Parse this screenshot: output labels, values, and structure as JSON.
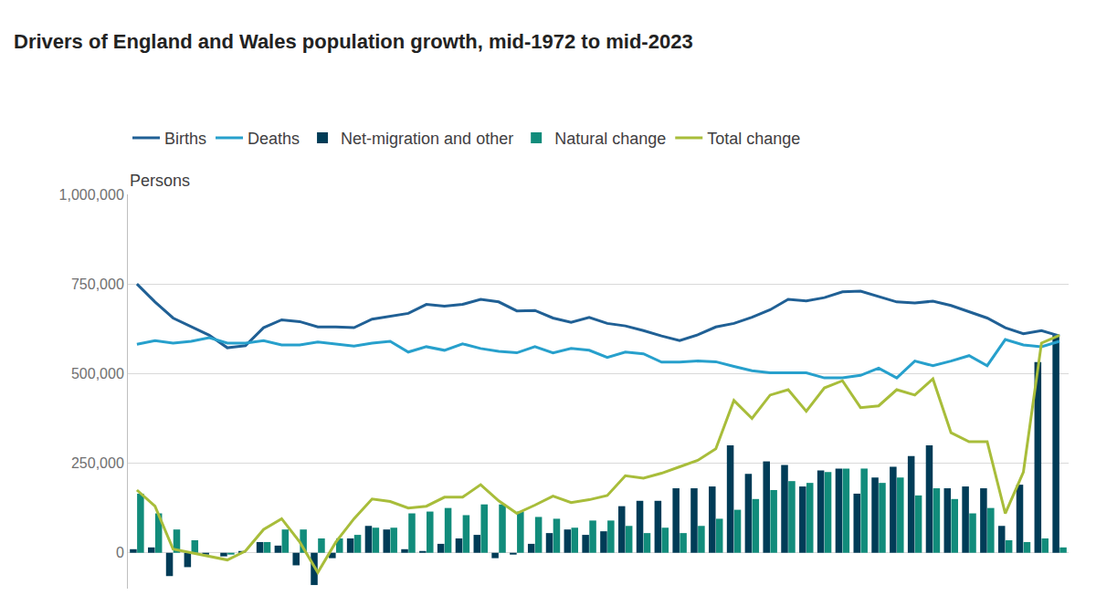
{
  "chart_data": {
    "type": "bar",
    "title": "Drivers of England and Wales population growth, mid-1972 to mid-2023",
    "ylabel": "Persons",
    "categories": [
      null,
      null,
      null,
      null,
      null,
      null,
      null,
      null,
      null,
      null,
      null,
      null,
      null,
      null,
      null,
      null,
      null,
      null,
      null,
      null,
      null,
      null,
      null,
      null,
      null,
      null,
      null,
      null,
      null,
      null,
      null,
      null,
      null,
      null,
      null,
      null,
      null,
      null,
      null,
      null,
      null,
      null,
      null,
      null,
      null,
      null,
      null,
      null,
      null,
      null,
      null,
      null
    ],
    "series": [
      {
        "name": "Births",
        "type": "line",
        "color": "#206095",
        "values": [
          750000,
          700000,
          655000,
          632000,
          607000,
          572000,
          578000,
          628000,
          650000,
          645000,
          630000,
          630000,
          628000,
          652000,
          660000,
          668000,
          693000,
          688000,
          693000,
          707000,
          700000,
          675000,
          676000,
          655000,
          643000,
          657000,
          640000,
          633000,
          620000,
          605000,
          592000,
          608000,
          630000,
          640000,
          657000,
          678000,
          707000,
          703000,
          712000,
          728000,
          730000,
          715000,
          700000,
          697000,
          702000,
          690000,
          672000,
          655000,
          628000,
          611000,
          620000,
          605000
        ]
      },
      {
        "name": "Deaths",
        "type": "line",
        "color": "#27a0cc",
        "values": [
          582000,
          592000,
          585000,
          590000,
          600000,
          585000,
          585000,
          592000,
          580000,
          580000,
          588000,
          582000,
          577000,
          585000,
          590000,
          560000,
          575000,
          565000,
          583000,
          570000,
          562000,
          558000,
          575000,
          558000,
          570000,
          565000,
          545000,
          560000,
          555000,
          532000,
          532000,
          535000,
          533000,
          520000,
          508000,
          502000,
          502000,
          502000,
          488000,
          488000,
          495000,
          515000,
          488000,
          535000,
          522000,
          535000,
          550000,
          522000,
          595000,
          580000,
          575000,
          590000
        ]
      },
      {
        "name": "Net-migration and other",
        "type": "bar",
        "color": "#003c57",
        "values": [
          10000,
          15000,
          -65000,
          -40000,
          -5000,
          -10000,
          5000,
          30000,
          20000,
          -35000,
          -90000,
          -15000,
          40000,
          75000,
          65000,
          10000,
          5000,
          25000,
          40000,
          50000,
          -15000,
          -5000,
          25000,
          55000,
          65000,
          50000,
          60000,
          130000,
          145000,
          145000,
          180000,
          180000,
          185000,
          300000,
          220000,
          255000,
          245000,
          185000,
          230000,
          235000,
          165000,
          210000,
          240000,
          270000,
          300000,
          180000,
          185000,
          180000,
          75000,
          190000,
          532000,
          607000
        ]
      },
      {
        "name": "Natural change",
        "type": "bar",
        "color": "#118c7b",
        "values": [
          165000,
          110000,
          65000,
          35000,
          0,
          -5000,
          0,
          30000,
          65000,
          65000,
          40000,
          40000,
          50000,
          70000,
          70000,
          110000,
          115000,
          125000,
          105000,
          135000,
          135000,
          115000,
          100000,
          95000,
          70000,
          90000,
          90000,
          75000,
          55000,
          70000,
          55000,
          75000,
          95000,
          120000,
          150000,
          175000,
          200000,
          195000,
          225000,
          235000,
          235000,
          195000,
          210000,
          160000,
          180000,
          150000,
          110000,
          125000,
          35000,
          30000,
          40000,
          15000
        ]
      },
      {
        "name": "Total change",
        "type": "line",
        "color": "#a8bd3a",
        "values": [
          175000,
          130000,
          10000,
          0,
          -10000,
          -20000,
          5000,
          65000,
          95000,
          30000,
          -55000,
          30000,
          95000,
          150000,
          143000,
          125000,
          130000,
          155000,
          155000,
          190000,
          145000,
          110000,
          133000,
          158000,
          140000,
          148000,
          160000,
          215000,
          208000,
          222000,
          240000,
          258000,
          290000,
          425000,
          375000,
          440000,
          455000,
          395000,
          460000,
          480000,
          405000,
          410000,
          455000,
          440000,
          485000,
          335000,
          310000,
          310000,
          110000,
          225000,
          585000,
          607000
        ]
      }
    ],
    "ylim": [
      -100000,
      1000000
    ],
    "yticks": [
      0,
      {
        "value": 250000,
        "label": "250,000"
      },
      {
        "value": 500000,
        "label": "500,000"
      },
      {
        "value": 750000,
        "label": "750,000"
      },
      {
        "value": 1000000,
        "label": "1,000,000"
      }
    ],
    "grid": true,
    "legend": "top",
    "tick_labels": "y"
  }
}
